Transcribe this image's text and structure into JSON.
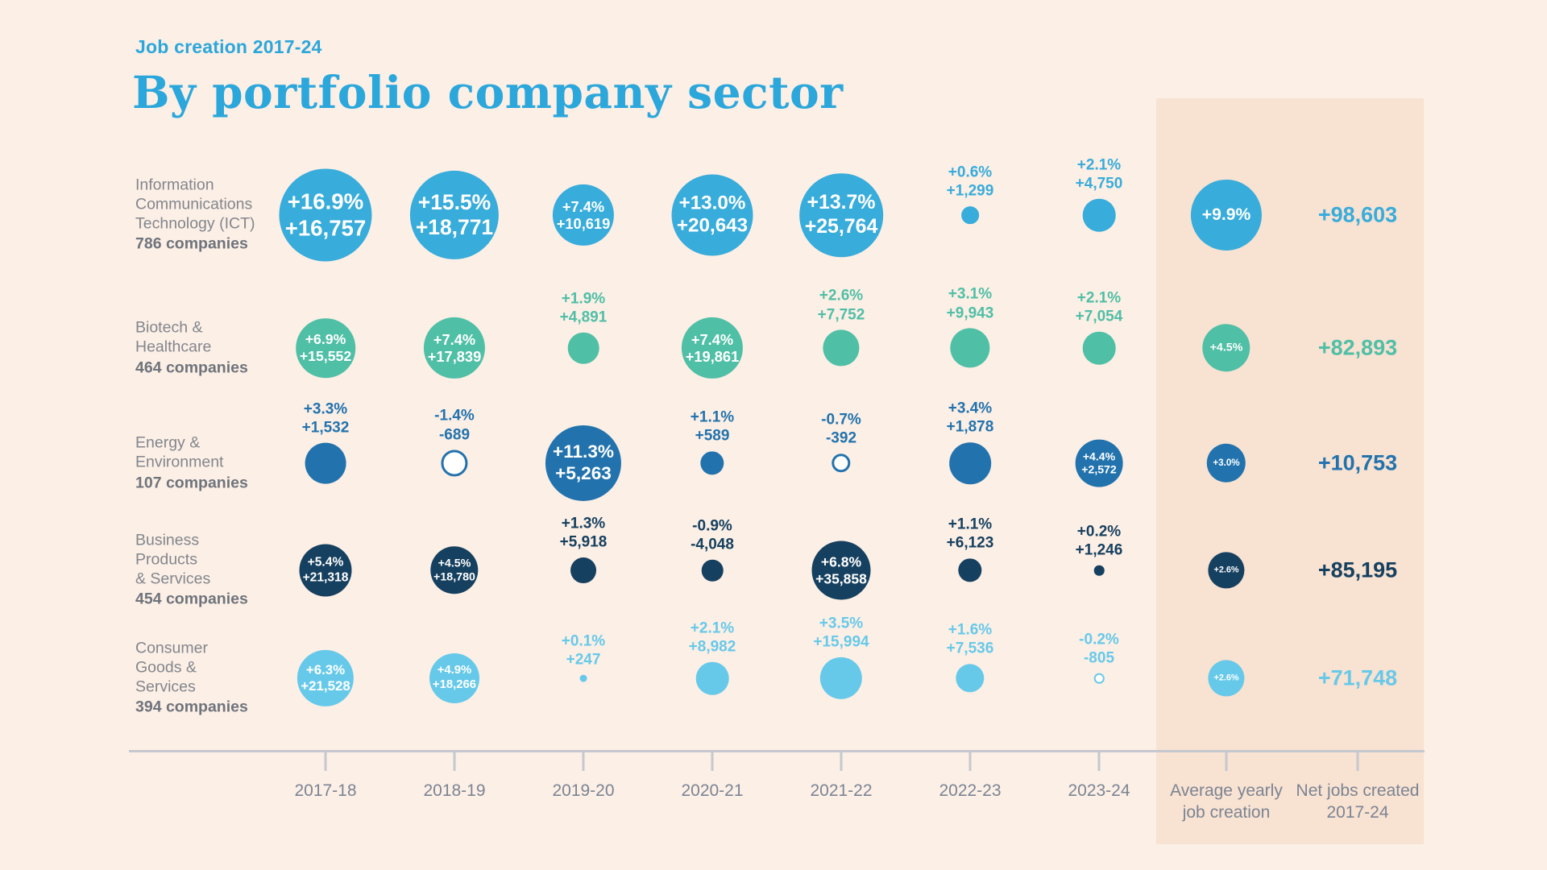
{
  "header": {
    "kicker": "Job creation 2017-24",
    "title": "By portfolio company sector"
  },
  "colors": {
    "background": "#fcefe6",
    "highlight_band": "#f8e2d2",
    "title_blue": "#2ba7db",
    "sector_label_gray": "#82868d",
    "axis_gray": "#c5c8cf",
    "tick_label_gray": "#7b8493"
  },
  "chart_data": {
    "type": "bubble",
    "note": "Bubble area encodes yearly % job growth; labels show % change and absolute jobs added.",
    "columns": [
      "2017-18",
      "2018-19",
      "2019-20",
      "2020-21",
      "2021-22",
      "2022-23",
      "2023-24"
    ],
    "summary_columns": [
      {
        "label_lines": [
          "Average yearly",
          "job creation"
        ]
      },
      {
        "label_lines": [
          "Net jobs created",
          "2017-24"
        ]
      }
    ],
    "rows": [
      {
        "sector": "Information Communications Technology (ICT)",
        "sector_lines": [
          "Information",
          "Communications",
          "Technology (ICT)"
        ],
        "companies": "786 companies",
        "color": "#38acda",
        "values": [
          {
            "pct": 16.9,
            "pct_label": "+16.9%",
            "jobs_label": "+16,757",
            "text": "inside",
            "filled": true
          },
          {
            "pct": 15.5,
            "pct_label": "+15.5%",
            "jobs_label": "+18,771",
            "text": "inside",
            "filled": true
          },
          {
            "pct": 7.4,
            "pct_label": "+7.4%",
            "jobs_label": "+10,619",
            "text": "inside",
            "filled": true
          },
          {
            "pct": 13.0,
            "pct_label": "+13.0%",
            "jobs_label": "+20,643",
            "text": "inside",
            "filled": true
          },
          {
            "pct": 13.7,
            "pct_label": "+13.7%",
            "jobs_label": "+25,764",
            "text": "inside",
            "filled": true
          },
          {
            "pct": 0.6,
            "pct_label": "+0.6%",
            "jobs_label": "+1,299",
            "text": "above",
            "filled": true
          },
          {
            "pct": 2.1,
            "pct_label": "+2.1%",
            "jobs_label": "+4,750",
            "text": "above",
            "filled": true
          }
        ],
        "average_pct": 9.9,
        "average_label": "+9.9%",
        "net_label": "+98,603"
      },
      {
        "sector": "Biotech & Healthcare",
        "sector_lines": [
          "Biotech &",
          "Healthcare"
        ],
        "companies": "464 companies",
        "color": "#4fbfa6",
        "values": [
          {
            "pct": 6.9,
            "pct_label": "+6.9%",
            "jobs_label": "+15,552",
            "text": "inside",
            "filled": true
          },
          {
            "pct": 7.4,
            "pct_label": "+7.4%",
            "jobs_label": "+17,839",
            "text": "inside",
            "filled": true
          },
          {
            "pct": 1.9,
            "pct_label": "+1.9%",
            "jobs_label": "+4,891",
            "text": "above",
            "filled": true
          },
          {
            "pct": 7.4,
            "pct_label": "+7.4%",
            "jobs_label": "+19,861",
            "text": "inside",
            "filled": true
          },
          {
            "pct": 2.6,
            "pct_label": "+2.6%",
            "jobs_label": "+7,752",
            "text": "above",
            "filled": true
          },
          {
            "pct": 3.1,
            "pct_label": "+3.1%",
            "jobs_label": "+9,943",
            "text": "above",
            "filled": true
          },
          {
            "pct": 2.1,
            "pct_label": "+2.1%",
            "jobs_label": "+7,054",
            "text": "above",
            "filled": true
          }
        ],
        "average_pct": 4.5,
        "average_label": "+4.5%",
        "net_label": "+82,893"
      },
      {
        "sector": "Energy & Environment",
        "sector_lines": [
          "Energy &",
          "Environment"
        ],
        "companies": "107 companies",
        "color": "#2273ad",
        "values": [
          {
            "pct": 3.3,
            "pct_label": "+3.3%",
            "jobs_label": "+1,532",
            "text": "above",
            "filled": true
          },
          {
            "pct": -1.4,
            "pct_label": "-1.4%",
            "jobs_label": "-689",
            "text": "above",
            "filled": false
          },
          {
            "pct": 11.3,
            "pct_label": "+11.3%",
            "jobs_label": "+5,263",
            "text": "inside",
            "filled": true
          },
          {
            "pct": 1.1,
            "pct_label": "+1.1%",
            "jobs_label": "+589",
            "text": "above",
            "filled": true
          },
          {
            "pct": -0.7,
            "pct_label": "-0.7%",
            "jobs_label": "-392",
            "text": "above",
            "filled": false
          },
          {
            "pct": 3.4,
            "pct_label": "+3.4%",
            "jobs_label": "+1,878",
            "text": "above",
            "filled": true
          },
          {
            "pct": 4.4,
            "pct_label": "+4.4%",
            "jobs_label": "+2,572",
            "text": "inside",
            "filled": true
          }
        ],
        "average_pct": 3.0,
        "average_label": "+3.0%",
        "net_label": "+10,753"
      },
      {
        "sector": "Business Products & Services",
        "sector_lines": [
          "Business",
          "Products",
          "& Services"
        ],
        "companies": "454 companies",
        "color": "#16405f",
        "values": [
          {
            "pct": 5.4,
            "pct_label": "+5.4%",
            "jobs_label": "+21,318",
            "text": "inside",
            "filled": true
          },
          {
            "pct": 4.5,
            "pct_label": "+4.5%",
            "jobs_label": "+18,780",
            "text": "inside",
            "filled": true
          },
          {
            "pct": 1.3,
            "pct_label": "+1.3%",
            "jobs_label": "+5,918",
            "text": "above",
            "filled": true
          },
          {
            "pct": -0.9,
            "pct_label": "-0.9%",
            "jobs_label": "-4,048",
            "text": "above",
            "filled": true
          },
          {
            "pct": 6.8,
            "pct_label": "+6.8%",
            "jobs_label": "+35,858",
            "text": "inside",
            "filled": true
          },
          {
            "pct": 1.1,
            "pct_label": "+1.1%",
            "jobs_label": "+6,123",
            "text": "above",
            "filled": true
          },
          {
            "pct": 0.2,
            "pct_label": "+0.2%",
            "jobs_label": "+1,246",
            "text": "above",
            "filled": true
          }
        ],
        "average_pct": 2.6,
        "average_label": "+2.6%",
        "net_label": "+85,195"
      },
      {
        "sector": "Consumer Goods & Services",
        "sector_lines": [
          "Consumer",
          "Goods &",
          "Services"
        ],
        "companies": "394 companies",
        "color": "#67c9e9",
        "values": [
          {
            "pct": 6.3,
            "pct_label": "+6.3%",
            "jobs_label": "+21,528",
            "text": "inside",
            "filled": true
          },
          {
            "pct": 4.9,
            "pct_label": "+4.9%",
            "jobs_label": "+18,266",
            "text": "inside",
            "filled": true
          },
          {
            "pct": 0.1,
            "pct_label": "+0.1%",
            "jobs_label": "+247",
            "text": "above",
            "filled": true
          },
          {
            "pct": 2.1,
            "pct_label": "+2.1%",
            "jobs_label": "+8,982",
            "text": "above",
            "filled": true
          },
          {
            "pct": 3.5,
            "pct_label": "+3.5%",
            "jobs_label": "+15,994",
            "text": "above",
            "filled": true
          },
          {
            "pct": 1.6,
            "pct_label": "+1.6%",
            "jobs_label": "+7,536",
            "text": "above",
            "filled": true
          },
          {
            "pct": -0.2,
            "pct_label": "-0.2%",
            "jobs_label": "-805",
            "text": "above",
            "filled": false
          }
        ],
        "average_pct": 2.6,
        "average_label": "+2.6%",
        "net_label": "+71,748"
      }
    ]
  }
}
